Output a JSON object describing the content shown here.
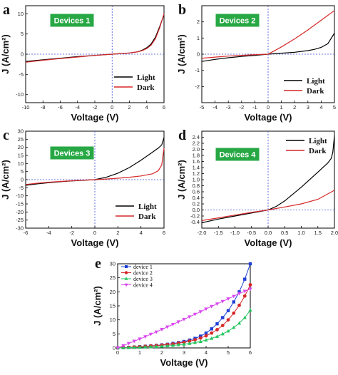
{
  "panels": [
    {
      "letter": "a",
      "badge": "Devices 1",
      "xlabel": "Voltage (V)",
      "ylabel": "J (A/cm²)",
      "xlim": [
        -10,
        6
      ],
      "ylim": [
        -12,
        12
      ],
      "xticks": [
        -10,
        -8,
        -6,
        -4,
        -2,
        0,
        2,
        4,
        6
      ],
      "yticks": [
        -10,
        -5,
        0,
        5,
        10
      ],
      "legend": [
        "Light",
        "Dark"
      ]
    },
    {
      "letter": "b",
      "badge": "Devices 2",
      "xlabel": "Voltage (V)",
      "ylabel": "J (A/cm²)",
      "xlim": [
        -5,
        5
      ],
      "ylim": [
        -3,
        3
      ],
      "xticks": [
        -5,
        -4,
        -3,
        -2,
        -1,
        0,
        1,
        2,
        3,
        4,
        5
      ],
      "yticks": [
        -2,
        -1,
        0,
        1,
        2
      ],
      "legend": [
        "Light",
        "Dark"
      ]
    },
    {
      "letter": "c",
      "badge": "Devices 3",
      "xlabel": "Voltage (V)",
      "ylabel": "J (A/cm²)",
      "xlim": [
        -6,
        6
      ],
      "ylim": [
        -30,
        30
      ],
      "xticks": [
        -6,
        -4,
        -2,
        0,
        2,
        4,
        6
      ],
      "yticks": [
        -30,
        -25,
        -20,
        -15,
        -10,
        -5,
        0,
        5,
        10,
        15,
        20,
        25,
        30
      ],
      "legend": [
        "Light",
        "Dark"
      ]
    },
    {
      "letter": "d",
      "badge": "Devices 4",
      "xlabel": "Voltage (V)",
      "ylabel": "J (A/cm²)",
      "xlim": [
        -2,
        2
      ],
      "ylim": [
        -0.6,
        2.6
      ],
      "xticks": [
        "-2.0",
        "-1.5",
        "-1.0",
        "-0.5",
        "0.0",
        "0.5",
        "1.0",
        "1.5",
        "2.0"
      ],
      "yticks": [
        "-0.4",
        "-0.2",
        "0.0",
        "0.2",
        "0.4",
        "0.6",
        "0.8",
        "1.0",
        "1.2",
        "1.4",
        "1.6",
        "1.8",
        "2.0",
        "2.2",
        "2.4"
      ],
      "legend": [
        "Light",
        "Dark"
      ]
    },
    {
      "letter": "e",
      "xlabel": "Voltage (V)",
      "ylabel": "J (A/cm²)",
      "xlim": [
        0,
        6
      ],
      "ylim": [
        0,
        30
      ],
      "xticks": [
        0,
        1,
        2,
        3,
        4,
        5,
        6
      ],
      "yticks": [
        0,
        5,
        10,
        15,
        20,
        25,
        30
      ],
      "legend": [
        "device 1",
        "device 2",
        "device 3",
        "device 4"
      ]
    }
  ],
  "colors": {
    "light": "#000000",
    "dark": "#d62728",
    "badge": "#27a844",
    "dashed": "#3b4fd8",
    "device1": "#1f3fd6",
    "device2": "#d62728",
    "device3": "#22c55e",
    "device4": "#d946ef"
  },
  "chart_data": [
    {
      "type": "line",
      "title": "Devices 1",
      "xlabel": "Voltage (V)",
      "ylabel": "J (A/cm²)",
      "xlim": [
        -10,
        6
      ],
      "ylim": [
        -12,
        12
      ],
      "grid": false,
      "legend_position": "bottom-right",
      "series": [
        {
          "name": "Light",
          "x": [
            -10,
            -8,
            -6,
            -4,
            -2,
            0,
            2,
            3,
            3.5,
            4,
            4.5,
            5,
            5.5,
            6
          ],
          "y": [
            -1.8,
            -1.4,
            -1.0,
            -0.6,
            -0.3,
            0,
            0.3,
            0.6,
            1.0,
            1.6,
            2.5,
            4.2,
            6.8,
            9.8
          ]
        },
        {
          "name": "Dark",
          "x": [
            -10,
            -8,
            -6,
            -4,
            -2,
            0,
            2,
            3,
            3.5,
            4,
            4.5,
            5,
            5.5,
            6
          ],
          "y": [
            -2.0,
            -1.5,
            -1.1,
            -0.7,
            -0.3,
            0,
            0.3,
            0.6,
            0.9,
            1.4,
            2.2,
            3.8,
            6.5,
            10.0
          ]
        }
      ]
    },
    {
      "type": "line",
      "title": "Devices 2",
      "xlabel": "Voltage (V)",
      "ylabel": "J (A/cm²)",
      "xlim": [
        -5,
        5
      ],
      "ylim": [
        -3,
        3
      ],
      "grid": false,
      "legend_position": "bottom-right",
      "series": [
        {
          "name": "Light",
          "x": [
            -5,
            -4,
            -3,
            -2,
            -1,
            0,
            1,
            2,
            3,
            3.5,
            4,
            4.5,
            5
          ],
          "y": [
            -0.45,
            -0.32,
            -0.22,
            -0.14,
            -0.07,
            0,
            0.06,
            0.12,
            0.22,
            0.3,
            0.42,
            0.65,
            1.3
          ]
        },
        {
          "name": "Dark",
          "x": [
            -5,
            -4,
            -3,
            -2,
            -1,
            0,
            1,
            2,
            3,
            4,
            5
          ],
          "y": [
            -0.25,
            -0.18,
            -0.12,
            -0.07,
            -0.03,
            0,
            0.45,
            0.95,
            1.5,
            2.1,
            2.7
          ]
        }
      ]
    },
    {
      "type": "line",
      "title": "Devices 3",
      "xlabel": "Voltage (V)",
      "ylabel": "J (A/cm²)",
      "xlim": [
        -6,
        6
      ],
      "ylim": [
        -30,
        30
      ],
      "grid": false,
      "legend_position": "bottom-right",
      "series": [
        {
          "name": "Light",
          "x": [
            -6,
            -5,
            -4,
            -3,
            -2,
            -1,
            0,
            1,
            2,
            3,
            4,
            5,
            5.5,
            5.8,
            6
          ],
          "y": [
            -3.5,
            -2.6,
            -1.9,
            -1.3,
            -0.8,
            -0.4,
            0,
            1.5,
            4.0,
            7.5,
            12.0,
            17.0,
            19.5,
            21.5,
            26.0
          ]
        },
        {
          "name": "Dark",
          "x": [
            -6,
            -5,
            -4,
            -3,
            -2,
            -1,
            0,
            1,
            2,
            3,
            4,
            5,
            5.5,
            5.8,
            6
          ],
          "y": [
            -3.0,
            -2.2,
            -1.6,
            -1.1,
            -0.7,
            -0.3,
            0,
            0.4,
            0.9,
            1.5,
            2.3,
            3.6,
            5.5,
            9.0,
            19.5
          ]
        }
      ]
    },
    {
      "type": "line",
      "title": "Devices 4",
      "xlabel": "Voltage (V)",
      "ylabel": "J (A/cm²)",
      "xlim": [
        -2,
        2
      ],
      "ylim": [
        -0.6,
        2.6
      ],
      "grid": false,
      "legend_position": "top-right",
      "series": [
        {
          "name": "Light",
          "x": [
            -2,
            -1.5,
            -1,
            -0.5,
            0,
            0.25,
            0.5,
            1,
            1.5,
            1.8,
            1.9,
            1.95,
            2
          ],
          "y": [
            -0.42,
            -0.3,
            -0.2,
            -0.1,
            0,
            0.12,
            0.3,
            0.75,
            1.25,
            1.55,
            1.7,
            1.9,
            2.45
          ]
        },
        {
          "name": "Dark",
          "x": [
            -2,
            -1.5,
            -1,
            -0.5,
            0,
            0.5,
            1,
            1.5,
            2
          ],
          "y": [
            -0.35,
            -0.26,
            -0.17,
            -0.08,
            0,
            0.1,
            0.2,
            0.35,
            0.65
          ]
        }
      ]
    },
    {
      "type": "line",
      "xlabel": "Voltage (V)",
      "ylabel": "J (A/cm²)",
      "xlim": [
        0,
        6
      ],
      "ylim": [
        0,
        30
      ],
      "grid": false,
      "legend_position": "top-left",
      "series": [
        {
          "name": "device 1",
          "x": [
            0,
            0.25,
            0.5,
            0.75,
            1,
            1.25,
            1.5,
            1.75,
            2,
            2.25,
            2.5,
            2.75,
            3,
            3.25,
            3.5,
            3.75,
            4,
            4.25,
            4.5,
            4.75,
            5,
            5.25,
            5.5,
            5.75,
            6
          ],
          "y": [
            0,
            0.1,
            0.2,
            0.3,
            0.45,
            0.6,
            0.75,
            0.9,
            1.1,
            1.3,
            1.6,
            1.9,
            2.3,
            2.8,
            3.4,
            4.2,
            5.3,
            6.8,
            8.6,
            10.8,
            13.3,
            16.4,
            20.0,
            24.5,
            30.0
          ]
        },
        {
          "name": "device 2",
          "x": [
            0,
            0.25,
            0.5,
            0.75,
            1,
            1.25,
            1.5,
            1.75,
            2,
            2.25,
            2.5,
            2.75,
            3,
            3.25,
            3.5,
            3.75,
            4,
            4.25,
            4.5,
            4.75,
            5,
            5.25,
            5.5,
            5.75,
            6
          ],
          "y": [
            0,
            0.1,
            0.2,
            0.3,
            0.4,
            0.55,
            0.7,
            0.85,
            1.0,
            1.2,
            1.4,
            1.7,
            2.0,
            2.4,
            2.9,
            3.5,
            4.3,
            5.3,
            6.5,
            8.0,
            10.0,
            12.4,
            15.2,
            18.5,
            22.5
          ]
        },
        {
          "name": "device 3",
          "x": [
            0,
            0.25,
            0.5,
            0.75,
            1,
            1.25,
            1.5,
            1.75,
            2,
            2.25,
            2.5,
            2.75,
            3,
            3.25,
            3.5,
            3.75,
            4,
            4.25,
            4.5,
            4.75,
            5,
            5.25,
            5.5,
            5.75,
            6
          ],
          "y": [
            0,
            0.05,
            0.1,
            0.15,
            0.2,
            0.3,
            0.4,
            0.5,
            0.6,
            0.75,
            0.9,
            1.1,
            1.3,
            1.6,
            1.9,
            2.3,
            2.8,
            3.4,
            4.1,
            5.0,
            6.0,
            7.3,
            8.8,
            10.8,
            13.5
          ]
        },
        {
          "name": "device 4",
          "x": [
            0,
            0.25,
            0.5,
            0.75,
            1,
            1.25,
            1.5,
            1.75,
            2,
            2.25,
            2.5,
            2.75,
            3,
            3.25,
            3.5,
            3.75,
            4,
            4.25,
            4.5,
            4.75,
            5,
            5.25,
            5.5,
            5.75,
            6
          ],
          "y": [
            0,
            0.8,
            1.6,
            2.4,
            3.2,
            4.0,
            4.9,
            5.7,
            6.6,
            7.5,
            8.4,
            9.3,
            10.2,
            11.1,
            12.0,
            12.9,
            13.9,
            14.8,
            15.7,
            16.6,
            17.5,
            18.4,
            19.4,
            20.2,
            21.0
          ]
        }
      ]
    }
  ]
}
